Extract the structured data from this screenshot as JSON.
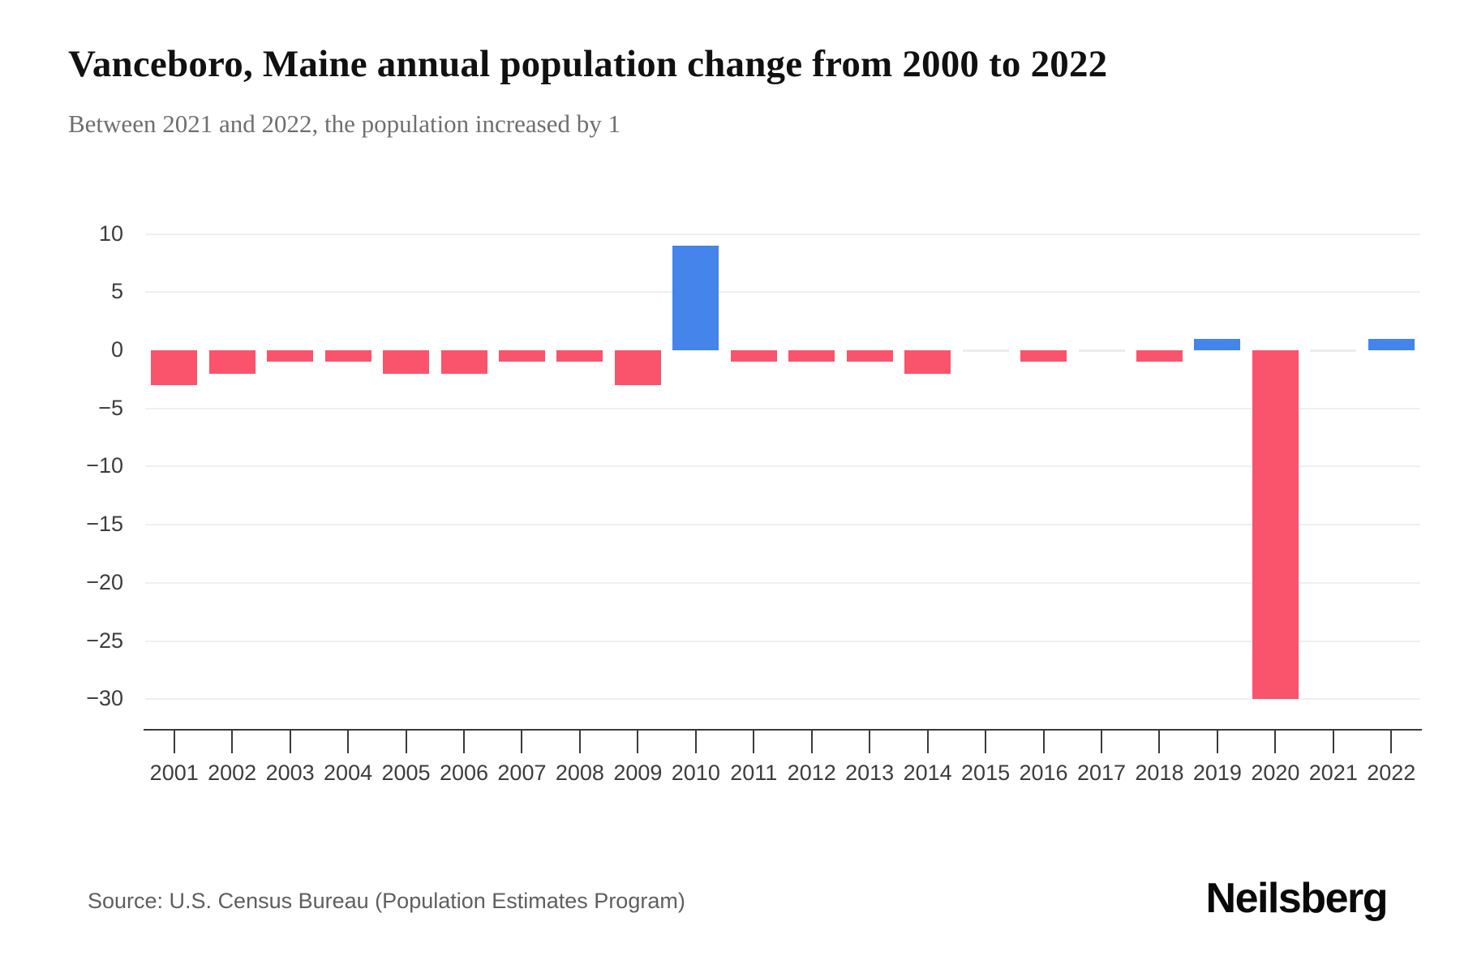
{
  "chart_data": {
    "type": "bar",
    "title": "Vanceboro, Maine annual population change from 2000 to 2022",
    "subtitle": "Between 2021 and 2022, the population increased by 1",
    "categories": [
      "2001",
      "2002",
      "2003",
      "2004",
      "2005",
      "2006",
      "2007",
      "2008",
      "2009",
      "2010",
      "2011",
      "2012",
      "2013",
      "2014",
      "2015",
      "2016",
      "2017",
      "2018",
      "2019",
      "2020",
      "2021",
      "2022"
    ],
    "values": [
      -3,
      -2,
      -1,
      -1,
      -2,
      -2,
      -1,
      -1,
      -3,
      9,
      -1,
      -1,
      -1,
      -2,
      0,
      -1,
      0,
      -1,
      1,
      -30,
      0,
      1
    ],
    "xlabel": "",
    "ylabel": "",
    "ylim": [
      -30,
      10
    ],
    "yticks": [
      10,
      5,
      0,
      -5,
      -10,
      -15,
      -20,
      -25,
      -30
    ],
    "grid": true,
    "legend": "none",
    "positive_color": "#4484EB",
    "negative_color": "#FA536C",
    "zero_bar_color": "#ececec",
    "gridline_color": "#efefef",
    "axis_color": "#3a3a3a",
    "label_color": "#3d3d3d"
  },
  "footer": {
    "source": "Source: U.S. Census Bureau (Population Estimates Program)",
    "logo": "Neilsberg"
  }
}
